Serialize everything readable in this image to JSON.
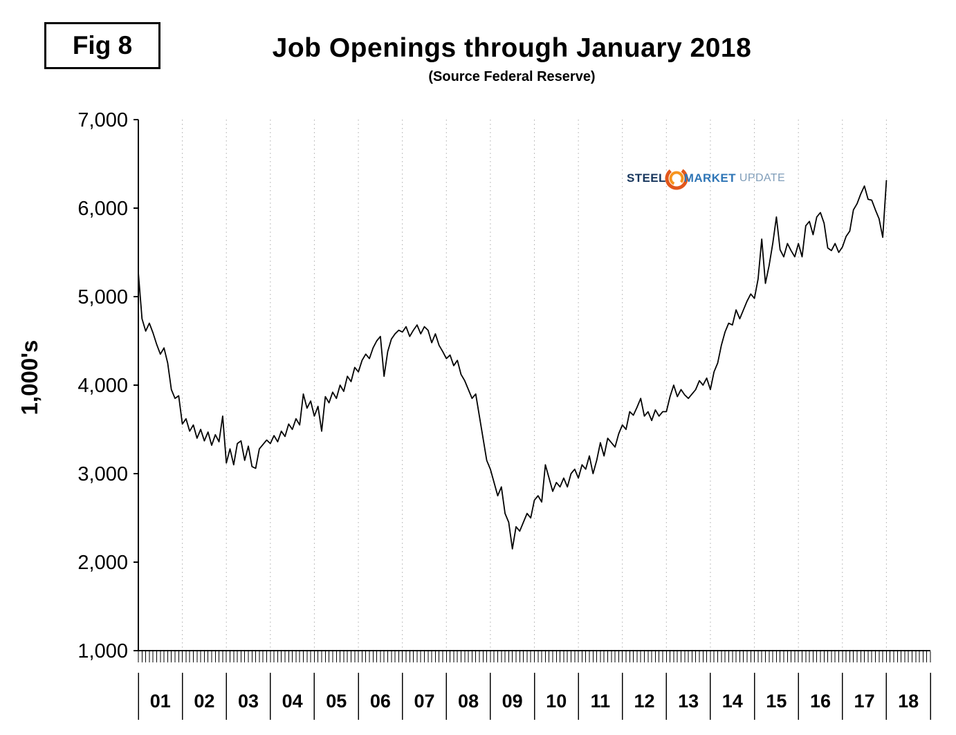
{
  "header": {
    "fig_label": "Fig 8",
    "title": "Job Openings through January 2018",
    "subtitle": "(Source Federal Reserve)"
  },
  "logo": {
    "steel": "STEEL",
    "market": "MARKET",
    "update": "UPDATE"
  },
  "colors": {
    "line": "#000000",
    "grid": "#aaaaaa",
    "axis": "#000000",
    "logo_steel": "#17365d",
    "logo_market": "#2e75b6",
    "logo_update": "#7f9db9",
    "logo_swirl_outer": "#e2571b",
    "logo_swirl_inner": "#f7941d"
  },
  "chart_data": {
    "type": "line",
    "title": "Job Openings through January 2018",
    "subtitle": "(Source Federal Reserve)",
    "ylabel": "1,000's",
    "ylim": [
      1000,
      7000
    ],
    "ytick_values": [
      7000,
      6000,
      5000,
      4000,
      3000,
      2000,
      1000
    ],
    "ytick_labels": [
      "7,000",
      "6,000",
      "5,000",
      "4,000",
      "3,000",
      "2,000",
      "1,000"
    ],
    "x_start": "2001-01",
    "x_end": "2018-01",
    "x_frequency": "monthly",
    "year_labels": [
      "01",
      "02",
      "03",
      "04",
      "05",
      "06",
      "07",
      "08",
      "09",
      "10",
      "11",
      "12",
      "13",
      "14",
      "15",
      "16",
      "17",
      "18"
    ],
    "grid": "vertical-dotted-yearly",
    "legend_position": "none",
    "series": [
      {
        "name": "Job Openings (thousands)",
        "values": [
          5270,
          4750,
          4610,
          4700,
          4590,
          4460,
          4350,
          4420,
          4250,
          3950,
          3850,
          3880,
          3560,
          3620,
          3480,
          3550,
          3400,
          3500,
          3370,
          3470,
          3320,
          3440,
          3360,
          3650,
          3120,
          3280,
          3100,
          3340,
          3370,
          3150,
          3310,
          3080,
          3060,
          3280,
          3330,
          3380,
          3340,
          3430,
          3360,
          3480,
          3420,
          3560,
          3500,
          3620,
          3550,
          3900,
          3740,
          3820,
          3650,
          3760,
          3480,
          3870,
          3800,
          3920,
          3850,
          4000,
          3930,
          4100,
          4040,
          4200,
          4150,
          4280,
          4350,
          4300,
          4420,
          4500,
          4550,
          4100,
          4380,
          4520,
          4580,
          4620,
          4600,
          4660,
          4550,
          4620,
          4680,
          4580,
          4660,
          4620,
          4480,
          4580,
          4450,
          4380,
          4300,
          4340,
          4220,
          4280,
          4120,
          4050,
          3950,
          3850,
          3900,
          3650,
          3400,
          3150,
          3050,
          2900,
          2750,
          2850,
          2550,
          2450,
          2150,
          2400,
          2350,
          2450,
          2550,
          2500,
          2700,
          2750,
          2680,
          3100,
          2950,
          2800,
          2900,
          2850,
          2950,
          2850,
          3000,
          3050,
          2950,
          3100,
          3050,
          3200,
          3000,
          3150,
          3350,
          3200,
          3400,
          3350,
          3300,
          3450,
          3550,
          3500,
          3700,
          3660,
          3750,
          3850,
          3650,
          3700,
          3600,
          3720,
          3650,
          3700,
          3700,
          3870,
          4000,
          3870,
          3950,
          3890,
          3850,
          3900,
          3950,
          4050,
          4000,
          4080,
          3950,
          4150,
          4250,
          4450,
          4600,
          4700,
          4680,
          4850,
          4750,
          4850,
          4950,
          5030,
          4980,
          5200,
          5650,
          5150,
          5350,
          5600,
          5900,
          5530,
          5450,
          5600,
          5520,
          5450,
          5600,
          5450,
          5800,
          5850,
          5700,
          5900,
          5950,
          5830,
          5550,
          5520,
          5600,
          5500,
          5560,
          5680,
          5740,
          5980,
          6050,
          6160,
          6250,
          6100,
          6090,
          5980,
          5880,
          5670,
          6312
        ]
      }
    ]
  }
}
